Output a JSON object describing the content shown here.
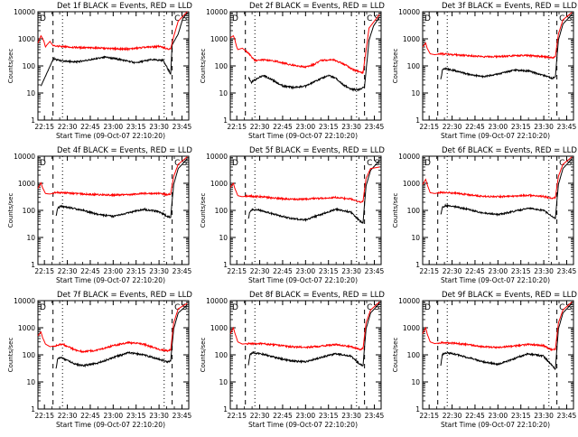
{
  "chart_data": [
    {
      "type": "line",
      "title": "Det 1f BLACK = Events, RED = LLD",
      "xlabel": "Start Time (09-Oct-07 22:10:20)",
      "ylabel": "Counts/sec",
      "x_ticks": [
        "22:15",
        "22:30",
        "22:45",
        "23:00",
        "23:15",
        "23:30",
        "23:45"
      ],
      "y_ticks": [
        "1",
        "10",
        "100",
        "1000",
        "10000"
      ],
      "ylim": [
        1,
        10000
      ],
      "y_scale": "log",
      "markers": [
        "D",
        "C",
        "S"
      ],
      "series": [
        {
          "color": "#000000",
          "t": [
            2,
            10,
            10.5,
            12,
            17,
            25,
            35,
            45,
            55,
            65,
            75,
            83,
            88,
            89,
            93,
            96,
            99
          ],
          "values": [
            18,
            170,
            190,
            170,
            150,
            140,
            170,
            210,
            170,
            130,
            170,
            160,
            50,
            600,
            1500,
            5500,
            9000
          ]
        },
        {
          "color": "#ff0000",
          "t": [
            0,
            2,
            3,
            4,
            5,
            6,
            8,
            10,
            15,
            20,
            30,
            40,
            50,
            60,
            70,
            80,
            84,
            86,
            88,
            90,
            93,
            99
          ],
          "values": [
            700,
            1300,
            1050,
            800,
            500,
            600,
            800,
            560,
            520,
            500,
            470,
            460,
            430,
            420,
            480,
            520,
            470,
            420,
            420,
            1200,
            4500,
            10000
          ]
        }
      ]
    },
    {
      "type": "line",
      "title": "Det 2f BLACK = Events, RED = LLD",
      "xlabel": "Start Time (09-Oct-07 22:10:20)",
      "ylabel": "Counts/sec",
      "x_ticks": [
        "22:15",
        "22:30",
        "22:45",
        "23:00",
        "23:15",
        "23:30",
        "23:45"
      ],
      "y_ticks": [
        "1",
        "10",
        "100",
        "1000",
        "10000"
      ],
      "ylim": [
        1,
        10000
      ],
      "y_scale": "log",
      "markers": [
        "D",
        "C",
        "S"
      ],
      "series": [
        {
          "color": "#000000",
          "t": [
            12,
            13,
            14,
            16,
            22,
            28,
            35,
            42,
            50,
            58,
            65,
            70,
            75,
            80,
            85,
            89,
            92,
            95,
            99
          ],
          "values": [
            40,
            30,
            25,
            30,
            45,
            30,
            18,
            16,
            18,
            30,
            45,
            35,
            20,
            14,
            13,
            17,
            900,
            3000,
            6500
          ]
        },
        {
          "color": "#ff0000",
          "t": [
            0,
            2,
            3,
            4,
            5,
            8,
            12,
            16,
            20,
            30,
            40,
            50,
            55,
            60,
            68,
            75,
            82,
            88,
            92,
            99
          ],
          "values": [
            1100,
            1300,
            950,
            550,
            400,
            450,
            300,
            160,
            170,
            150,
            110,
            90,
            110,
            160,
            170,
            120,
            70,
            55,
            2500,
            8000
          ]
        }
      ]
    },
    {
      "type": "line",
      "title": "Det 3f BLACK = Events, RED = LLD",
      "xlabel": "Start Time (09-Oct-07 22:10:20)",
      "ylabel": "Counts/sec",
      "x_ticks": [
        "22:15",
        "22:30",
        "22:45",
        "23:00",
        "23:15",
        "23:30",
        "23:45"
      ],
      "y_ticks": [
        "1",
        "10",
        "100",
        "1000",
        "10000"
      ],
      "ylim": [
        1,
        10000
      ],
      "y_scale": "log",
      "markers": [
        "D",
        "C",
        "S"
      ],
      "series": [
        {
          "color": "#000000",
          "t": [
            12,
            13,
            15,
            20,
            30,
            40,
            50,
            60,
            70,
            80,
            86,
            88,
            90,
            93,
            99
          ],
          "values": [
            30,
            70,
            80,
            70,
            50,
            40,
            50,
            70,
            65,
            45,
            35,
            40,
            900,
            3500,
            8000
          ]
        },
        {
          "color": "#ff0000",
          "t": [
            0,
            2,
            3,
            5,
            8,
            12,
            20,
            30,
            40,
            50,
            60,
            70,
            80,
            86,
            88,
            90,
            93,
            99
          ],
          "values": [
            500,
            700,
            450,
            280,
            260,
            280,
            260,
            240,
            220,
            220,
            240,
            240,
            220,
            200,
            220,
            1500,
            5000,
            9500
          ]
        }
      ]
    },
    {
      "type": "line",
      "title": "Det 4f BLACK = Events, RED = LLD",
      "xlabel": "Start Time (09-Oct-07 22:10:20)",
      "ylabel": "Counts/sec",
      "x_ticks": [
        "22:15",
        "22:30",
        "22:45",
        "23:00",
        "23:15",
        "23:30",
        "23:45"
      ],
      "y_ticks": [
        "1",
        "10",
        "100",
        "1000",
        "10000"
      ],
      "ylim": [
        1,
        10000
      ],
      "y_scale": "log",
      "markers": [
        "D",
        "C",
        "S"
      ],
      "series": [
        {
          "color": "#000000",
          "t": [
            12,
            13,
            15,
            20,
            30,
            40,
            50,
            60,
            70,
            80,
            86,
            88,
            90,
            93,
            99
          ],
          "values": [
            60,
            120,
            140,
            130,
            100,
            70,
            60,
            80,
            110,
            90,
            60,
            55,
            900,
            3500,
            8000
          ]
        },
        {
          "color": "#ff0000",
          "t": [
            0,
            2,
            3,
            5,
            8,
            12,
            20,
            30,
            40,
            50,
            60,
            70,
            80,
            86,
            88,
            90,
            93,
            99
          ],
          "values": [
            650,
            1050,
            700,
            420,
            400,
            460,
            440,
            400,
            380,
            370,
            380,
            420,
            420,
            380,
            400,
            1800,
            5000,
            9500
          ]
        }
      ]
    },
    {
      "type": "line",
      "title": "Det 5f BLACK = Events, RED = LLD",
      "xlabel": "Start Time (09-Oct-07 22:10:20)",
      "ylabel": "Counts/sec",
      "x_ticks": [
        "22:15",
        "22:30",
        "22:45",
        "23:00",
        "23:15",
        "23:30",
        "23:45"
      ],
      "y_ticks": [
        "1",
        "10",
        "100",
        "1000",
        "10000"
      ],
      "ylim": [
        1,
        10000
      ],
      "y_scale": "log",
      "markers": [
        "D",
        "C",
        "S"
      ],
      "series": [
        {
          "color": "#000000",
          "t": [
            12,
            13,
            15,
            20,
            30,
            40,
            50,
            60,
            70,
            80,
            86,
            88,
            90,
            93,
            99
          ],
          "values": [
            50,
            90,
            110,
            100,
            70,
            50,
            45,
            70,
            110,
            85,
            40,
            35,
            800,
            3000,
            7000
          ]
        },
        {
          "color": "#ff0000",
          "t": [
            0,
            2,
            3,
            5,
            8,
            12,
            20,
            30,
            40,
            50,
            60,
            70,
            80,
            86,
            88,
            90,
            93,
            99
          ],
          "values": [
            700,
            1000,
            650,
            350,
            320,
            340,
            320,
            280,
            260,
            260,
            280,
            300,
            260,
            200,
            220,
            1500,
            3500,
            4000
          ]
        }
      ]
    },
    {
      "type": "line",
      "title": "Det 6f BLACK = Events, RED = LLD",
      "xlabel": "Start Time (09-Oct-07 22:10:20)",
      "ylabel": "Counts/sec",
      "x_ticks": [
        "22:15",
        "22:30",
        "22:45",
        "23:00",
        "23:15",
        "23:30",
        "23:45"
      ],
      "y_ticks": [
        "1",
        "10",
        "100",
        "1000",
        "10000"
      ],
      "ylim": [
        1,
        10000
      ],
      "y_scale": "log",
      "markers": [
        "D",
        "C",
        "S"
      ],
      "series": [
        {
          "color": "#000000",
          "t": [
            12,
            13,
            15,
            20,
            30,
            40,
            50,
            60,
            70,
            80,
            86,
            88,
            90,
            93,
            99
          ],
          "values": [
            70,
            130,
            150,
            140,
            110,
            80,
            70,
            90,
            120,
            100,
            60,
            50,
            900,
            3500,
            8000
          ]
        },
        {
          "color": "#ff0000",
          "t": [
            0,
            2,
            3,
            5,
            8,
            12,
            20,
            30,
            40,
            50,
            60,
            70,
            80,
            86,
            88,
            90,
            93,
            99
          ],
          "values": [
            900,
            1400,
            900,
            450,
            420,
            460,
            440,
            380,
            330,
            320,
            340,
            360,
            330,
            280,
            300,
            1800,
            5000,
            9500
          ]
        }
      ]
    },
    {
      "type": "line",
      "title": "Det 7f BLACK = Events, RED = LLD",
      "xlabel": "Start Time (09-Oct-07 22:10:20)",
      "ylabel": "Counts/sec",
      "x_ticks": [
        "22:15",
        "22:30",
        "22:45",
        "23:00",
        "23:15",
        "23:30",
        "23:45"
      ],
      "y_ticks": [
        "1",
        "10",
        "100",
        "1000",
        "10000"
      ],
      "ylim": [
        1,
        10000
      ],
      "y_scale": "log",
      "markers": [
        "D",
        "C",
        "S"
      ],
      "series": [
        {
          "color": "#000000",
          "t": [
            12,
            13,
            15,
            20,
            25,
            30,
            40,
            50,
            60,
            70,
            80,
            86,
            88,
            90,
            93,
            99
          ],
          "values": [
            30,
            70,
            80,
            60,
            45,
            40,
            50,
            80,
            120,
            100,
            70,
            55,
            60,
            900,
            3500,
            7000
          ]
        },
        {
          "color": "#ff0000",
          "t": [
            0,
            2,
            3,
            5,
            8,
            12,
            16,
            20,
            25,
            30,
            40,
            50,
            60,
            70,
            80,
            86,
            88,
            90,
            93,
            99
          ],
          "values": [
            500,
            700,
            450,
            250,
            200,
            220,
            250,
            200,
            150,
            130,
            150,
            220,
            280,
            250,
            160,
            140,
            150,
            1500,
            5000,
            8000
          ]
        }
      ]
    },
    {
      "type": "line",
      "title": "Det 8f BLACK = Events, RED = LLD",
      "xlabel": "Start Time (09-Oct-07 22:10:20)",
      "ylabel": "Counts/sec",
      "x_ticks": [
        "22:15",
        "22:30",
        "22:45",
        "23:00",
        "23:15",
        "23:30",
        "23:45"
      ],
      "y_ticks": [
        "1",
        "10",
        "100",
        "1000",
        "10000"
      ],
      "ylim": [
        1,
        10000
      ],
      "y_scale": "log",
      "markers": [
        "D",
        "C",
        "S"
      ],
      "series": [
        {
          "color": "#000000",
          "t": [
            12,
            13,
            15,
            20,
            30,
            40,
            50,
            60,
            70,
            80,
            86,
            88,
            90,
            93,
            99
          ],
          "values": [
            40,
            100,
            120,
            110,
            80,
            60,
            55,
            80,
            110,
            90,
            45,
            40,
            900,
            3500,
            8000
          ]
        },
        {
          "color": "#ff0000",
          "t": [
            0,
            2,
            3,
            5,
            8,
            12,
            20,
            30,
            40,
            50,
            60,
            70,
            80,
            86,
            88,
            90,
            93,
            99
          ],
          "values": [
            600,
            1000,
            650,
            300,
            250,
            260,
            260,
            230,
            200,
            190,
            210,
            240,
            200,
            160,
            170,
            1500,
            4500,
            9000
          ]
        }
      ]
    },
    {
      "type": "line",
      "title": "Det 9f BLACK = Events, RED = LLD",
      "xlabel": "Start Time (09-Oct-07 22:10:20)",
      "ylabel": "Counts/sec",
      "x_ticks": [
        "22:15",
        "22:30",
        "22:45",
        "23:00",
        "23:15",
        "23:30",
        "23:45"
      ],
      "y_ticks": [
        "1",
        "10",
        "100",
        "1000",
        "10000"
      ],
      "ylim": [
        1,
        10000
      ],
      "y_scale": "log",
      "markers": [
        "D",
        "C",
        "S"
      ],
      "series": [
        {
          "color": "#000000",
          "t": [
            12,
            13,
            15,
            20,
            30,
            40,
            50,
            60,
            70,
            80,
            86,
            88,
            90,
            93,
            99
          ],
          "values": [
            40,
            100,
            120,
            110,
            80,
            55,
            45,
            70,
            110,
            90,
            40,
            30,
            900,
            3500,
            8000
          ]
        },
        {
          "color": "#ff0000",
          "t": [
            0,
            2,
            3,
            5,
            8,
            12,
            20,
            30,
            40,
            50,
            60,
            70,
            80,
            86,
            88,
            90,
            93,
            99
          ],
          "values": [
            600,
            1000,
            600,
            300,
            260,
            280,
            270,
            240,
            200,
            190,
            210,
            240,
            220,
            150,
            160,
            1500,
            4500,
            9000
          ]
        }
      ]
    }
  ]
}
